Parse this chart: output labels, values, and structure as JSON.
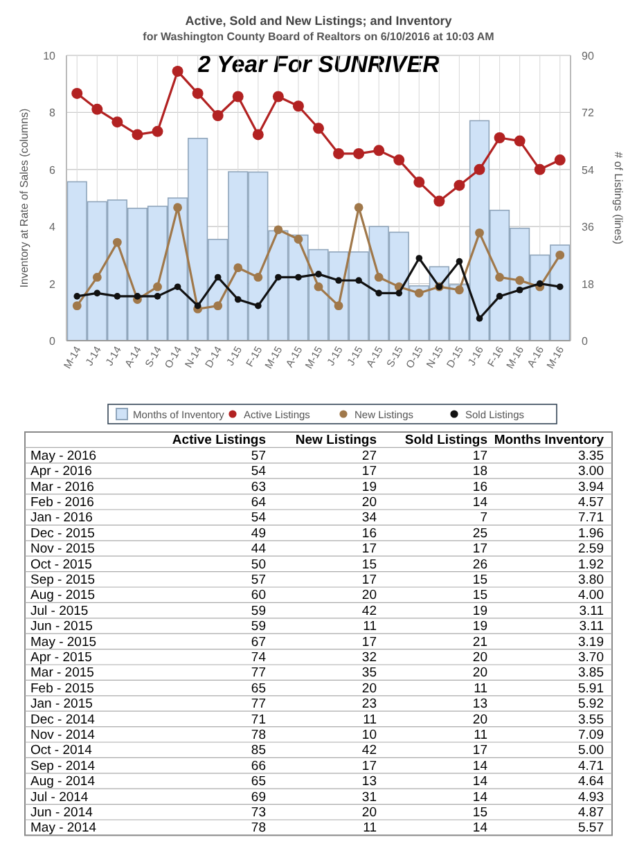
{
  "chart_data": [
    {
      "type": "bar",
      "title": "Active, Sold and New Listings; and Inventory",
      "subtitle": "for Washington County Board of Realtors on 6/10/2016 at 10:03 AM",
      "annotations": [
        "2 Year For SUNRIVER"
      ],
      "ylabel": "Inventory at Rate of Sales (columns)",
      "y2label": "# of Listings (lines)",
      "categories": [
        "M-14",
        "J-14",
        "J-14",
        "A-14",
        "S-14",
        "O-14",
        "N-14",
        "D-14",
        "J-15",
        "F-15",
        "M-15",
        "A-15",
        "M-15",
        "J-15",
        "J-15",
        "A-15",
        "S-15",
        "O-15",
        "N-15",
        "D-15",
        "J-16",
        "F-16",
        "M-16",
        "A-16",
        "M-16"
      ],
      "series": [
        {
          "name": "Months of Inventory",
          "type": "bar",
          "color": "#cfe2f7",
          "values": [
            5.57,
            4.87,
            4.93,
            4.64,
            4.71,
            5.0,
            7.09,
            3.55,
            5.92,
            5.91,
            3.85,
            3.7,
            3.19,
            3.11,
            3.11,
            4.0,
            3.8,
            1.92,
            2.59,
            1.96,
            7.71,
            4.57,
            3.94,
            3.0,
            3.35
          ]
        },
        {
          "name": "Active Listings",
          "type": "line",
          "axis": "y2",
          "color": "#b22222",
          "values": [
            78,
            73,
            69,
            65,
            66,
            85,
            78,
            71,
            77,
            65,
            77,
            74,
            67,
            59,
            59,
            60,
            57,
            50,
            44,
            49,
            54,
            64,
            63,
            54,
            57
          ]
        },
        {
          "name": "New Listings",
          "type": "line",
          "axis": "y2",
          "color": "#a0784a",
          "values": [
            11,
            20,
            31,
            13,
            17,
            42,
            10,
            11,
            23,
            20,
            35,
            32,
            17,
            11,
            42,
            20,
            17,
            15,
            17,
            16,
            34,
            20,
            19,
            17,
            27
          ]
        },
        {
          "name": "Sold Listings",
          "type": "line",
          "axis": "y2",
          "color": "#111111",
          "values": [
            14,
            15,
            14,
            14,
            14,
            17,
            11,
            20,
            13,
            11,
            20,
            20,
            21,
            19,
            19,
            15,
            15,
            26,
            17,
            25,
            7,
            14,
            16,
            18,
            17
          ]
        }
      ],
      "ylim": [
        0,
        10
      ],
      "yticks": [
        0,
        2,
        4,
        6,
        8,
        10
      ],
      "y2lim": [
        0,
        90
      ],
      "y2ticks": [
        0,
        18,
        36,
        54,
        72,
        90
      ],
      "grid": true,
      "legend": "bottom",
      "marker": "circle"
    },
    {
      "type": "other",
      "data_labels": true,
      "categories": [
        "May - 2016",
        "Apr - 2016",
        "Mar - 2016",
        "Feb - 2016",
        "Jan - 2016",
        "Dec - 2015",
        "Nov - 2015",
        "Oct - 2015",
        "Sep - 2015",
        "Aug - 2015",
        "Jul - 2015",
        "Jun - 2015",
        "May - 2015",
        "Apr - 2015",
        "Mar - 2015",
        "Feb - 2015",
        "Jan - 2015",
        "Dec - 2014",
        "Nov - 2014",
        "Oct - 2014",
        "Sep - 2014",
        "Aug - 2014",
        "Jul - 2014",
        "Jun - 2014",
        "May - 2014"
      ],
      "series": [
        {
          "name": "Active Listings",
          "values": [
            57,
            54,
            63,
            64,
            54,
            49,
            44,
            50,
            57,
            60,
            59,
            59,
            67,
            74,
            77,
            65,
            77,
            71,
            78,
            85,
            66,
            65,
            69,
            73,
            78
          ]
        },
        {
          "name": "New Listings",
          "values": [
            27,
            17,
            19,
            20,
            34,
            16,
            17,
            15,
            17,
            20,
            42,
            11,
            17,
            32,
            35,
            20,
            23,
            11,
            10,
            42,
            17,
            13,
            31,
            20,
            11
          ]
        },
        {
          "name": "Sold Listings",
          "values": [
            17,
            18,
            16,
            14,
            7,
            25,
            17,
            26,
            15,
            15,
            19,
            19,
            21,
            20,
            20,
            11,
            13,
            20,
            11,
            17,
            14,
            14,
            14,
            15,
            14
          ]
        },
        {
          "name": "Months Inventory",
          "values": [
            3.35,
            3.0,
            3.94,
            4.57,
            7.71,
            1.96,
            2.59,
            1.92,
            3.8,
            4.0,
            3.11,
            3.11,
            3.19,
            3.7,
            3.85,
            5.91,
            5.92,
            3.55,
            7.09,
            5.0,
            4.71,
            4.64,
            4.93,
            4.87,
            5.57
          ],
          "value_labels": [
            "3.35",
            "3.00",
            "3.94",
            "4.57",
            "7.71",
            "1.96",
            "2.59",
            "1.92",
            "3.80",
            "4.00",
            "3.11",
            "3.11",
            "3.19",
            "3.70",
            "3.85",
            "5.91",
            "5.92",
            "3.55",
            "7.09",
            "5.00",
            "4.71",
            "4.64",
            "4.93",
            "4.87",
            "5.57"
          ]
        }
      ]
    }
  ]
}
